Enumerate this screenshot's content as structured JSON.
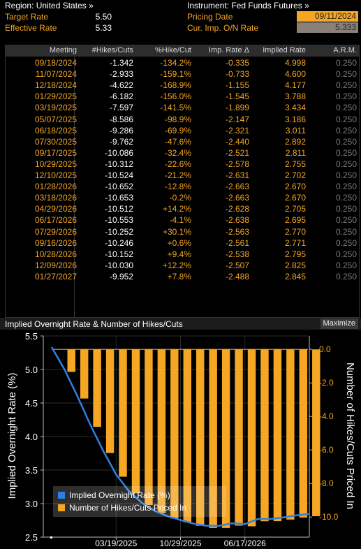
{
  "header": {
    "region_label": "Region: United States »",
    "instrument_label": "Instrument: Fed Funds Futures »",
    "target_rate_label": "Target Rate",
    "target_rate_value": "5.50",
    "effective_rate_label": "Effective Rate",
    "effective_rate_value": "5.33",
    "pricing_date_label": "Pricing Date",
    "pricing_date_value": "09/11/2024",
    "cur_imp_label": "Cur. Imp. O/N Rate",
    "cur_imp_value": "5.333"
  },
  "table": {
    "columns": [
      "Meeting",
      "#Hikes/Cuts",
      "%Hike/Cut",
      "Imp. Rate Δ",
      "Implied Rate",
      "A.R.M."
    ],
    "rows": [
      [
        "09/18/2024",
        "-1.342",
        "-134.2%",
        "-0.335",
        "4.998",
        "0.250"
      ],
      [
        "11/07/2024",
        "-2.933",
        "-159.1%",
        "-0.733",
        "4.600",
        "0.250"
      ],
      [
        "12/18/2024",
        "-4.622",
        "-168.9%",
        "-1.155",
        "4.177",
        "0.250"
      ],
      [
        "01/29/2025",
        "-6.182",
        "-156.0%",
        "-1.545",
        "3.788",
        "0.250"
      ],
      [
        "03/19/2025",
        "-7.597",
        "-141.5%",
        "-1.899",
        "3.434",
        "0.250"
      ],
      [
        "05/07/2025",
        "-8.586",
        "-98.9%",
        "-2.147",
        "3.186",
        "0.250"
      ],
      [
        "06/18/2025",
        "-9.286",
        "-69.9%",
        "-2.321",
        "3.011",
        "0.250"
      ],
      [
        "07/30/2025",
        "-9.762",
        "-47.6%",
        "-2.440",
        "2.892",
        "0.250"
      ],
      [
        "09/17/2025",
        "-10.086",
        "-32.4%",
        "-2.521",
        "2.811",
        "0.250"
      ],
      [
        "10/29/2025",
        "-10.312",
        "-22.6%",
        "-2.578",
        "2.755",
        "0.250"
      ],
      [
        "12/10/2025",
        "-10.524",
        "-21.2%",
        "-2.631",
        "2.702",
        "0.250"
      ],
      [
        "01/28/2026",
        "-10.652",
        "-12.8%",
        "-2.663",
        "2.670",
        "0.250"
      ],
      [
        "03/18/2026",
        "-10.653",
        "-0.2%",
        "-2.663",
        "2.670",
        "0.250"
      ],
      [
        "04/29/2026",
        "-10.512",
        "+14.2%",
        "-2.628",
        "2.705",
        "0.250"
      ],
      [
        "06/17/2026",
        "-10.553",
        "-4.1%",
        "-2.638",
        "2.695",
        "0.250"
      ],
      [
        "07/29/2026",
        "-10.252",
        "+30.1%",
        "-2.563",
        "2.770",
        "0.250"
      ],
      [
        "09/16/2026",
        "-10.246",
        "+0.6%",
        "-2.561",
        "2.771",
        "0.250"
      ],
      [
        "10/28/2026",
        "-10.152",
        "+9.4%",
        "-2.538",
        "2.795",
        "0.250"
      ],
      [
        "12/09/2026",
        "-10.030",
        "+12.2%",
        "-2.507",
        "2.825",
        "0.250"
      ],
      [
        "01/27/2027",
        "-9.952",
        "+7.8%",
        "-2.488",
        "2.845",
        "0.250"
      ]
    ]
  },
  "chart_panel": {
    "title": "Implied Overnight Rate & Number of Hikes/Cuts",
    "maximize_label": "Maximize"
  },
  "chart_data": {
    "type": "bar",
    "title": "Implied Overnight Rate & Number of Hikes/Cuts",
    "categories": [
      "09/11/2024",
      "09/18/2024",
      "11/07/2024",
      "12/18/2024",
      "01/29/2025",
      "03/19/2025",
      "05/07/2025",
      "06/18/2025",
      "07/30/2025",
      "09/17/2025",
      "10/29/2025",
      "12/10/2025",
      "01/28/2026",
      "03/18/2026",
      "04/29/2026",
      "06/17/2026",
      "07/29/2026",
      "09/16/2026",
      "10/28/2026",
      "12/09/2026",
      "01/27/2027"
    ],
    "x_tick_labels": [
      "03/19/2025",
      "10/29/2025",
      "06/17/2026"
    ],
    "ylabel_left": "Implied Overnight Rate (%)",
    "ylabel_right": "Number of Hikes/Cuts Priced In",
    "ylim_left": [
      2.5,
      5.5
    ],
    "yticks_left": [
      "2.5",
      "3.0",
      "3.5",
      "4.0",
      "4.5",
      "5.0",
      "5.5"
    ],
    "ylim_right": [
      -11.2,
      0.8
    ],
    "yticks_right": [
      "-10.0",
      "-8.0",
      "-6.0",
      "-4.0",
      "-2.0",
      "0.0"
    ],
    "legend_position": "bottom-left",
    "series": [
      {
        "name": "Implied Overnight Rate (%)",
        "axis": "left",
        "type": "line",
        "color": "#2f7fe3",
        "values": [
          5.333,
          4.998,
          4.6,
          4.177,
          3.788,
          3.434,
          3.186,
          3.011,
          2.892,
          2.811,
          2.755,
          2.702,
          2.67,
          2.67,
          2.705,
          2.695,
          2.77,
          2.771,
          2.795,
          2.825,
          2.845
        ]
      },
      {
        "name": "Number of Hikes/Cuts Priced In",
        "axis": "right",
        "type": "bar",
        "color": "#f5a623",
        "values": [
          0,
          -1.342,
          -2.933,
          -4.622,
          -6.182,
          -7.597,
          -8.586,
          -9.286,
          -9.762,
          -10.086,
          -10.312,
          -10.524,
          -10.652,
          -10.653,
          -10.512,
          -10.553,
          -10.252,
          -10.246,
          -10.152,
          -10.03,
          -9.952
        ]
      }
    ]
  }
}
